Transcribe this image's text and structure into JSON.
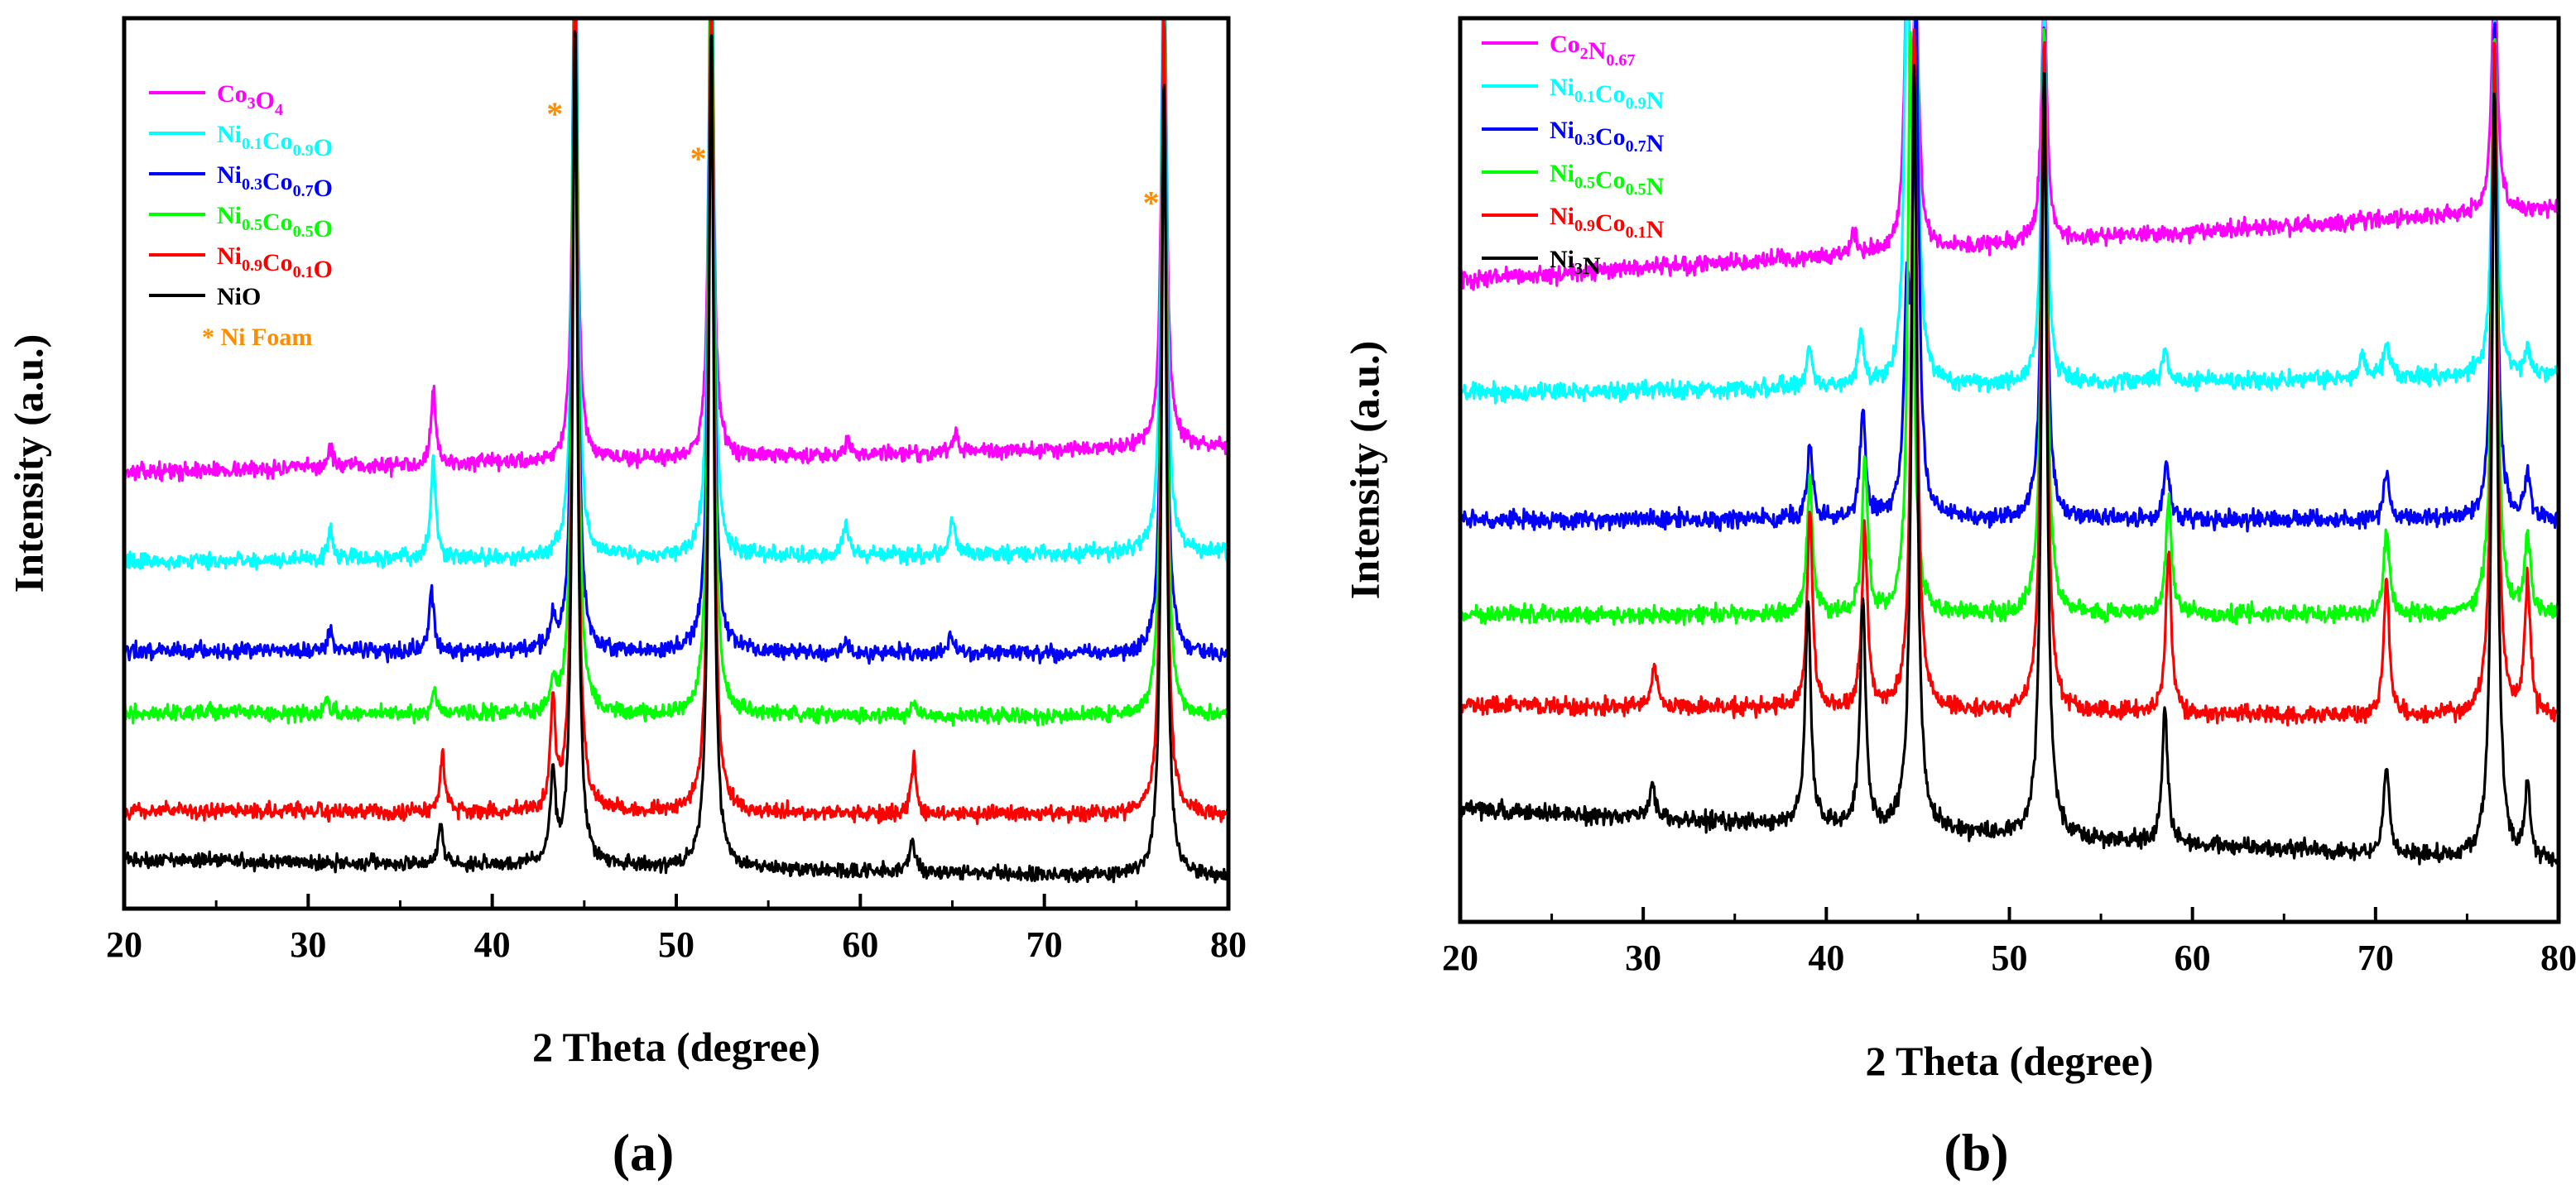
{
  "chart_data": [
    {
      "panel": "(a)",
      "type": "line",
      "title": "",
      "xlabel": "2 Theta (degree)",
      "ylabel": "Intensity (a.u.)",
      "xlim": [
        20,
        80
      ],
      "xticks": [
        20,
        30,
        40,
        50,
        60,
        70,
        80
      ],
      "ylim": [
        0,
        100
      ],
      "grid": false,
      "legend_position": "top-left",
      "legend_extra": "* Ni Foam",
      "legend_extra_color": "#ff8c00",
      "annotations": [
        {
          "text": "*",
          "x": 43.4,
          "y": 88,
          "color": "#ff8c00"
        },
        {
          "text": "*",
          "x": 51.2,
          "y": 83,
          "color": "#ff8c00"
        },
        {
          "text": "*",
          "x": 75.8,
          "y": 78,
          "color": "#ff8c00"
        }
      ],
      "peak_width": 0.16,
      "series": [
        {
          "name": "Co3O4",
          "label_parts": [
            [
              "Co",
              ""
            ],
            [
              "3",
              "sub"
            ],
            [
              "O",
              ""
            ],
            [
              "4",
              "sub"
            ]
          ],
          "color": "#ff00ff",
          "baseline_start": 49,
          "baseline_end": 52,
          "noise": 0.55,
          "peaks": [
            {
              "x": 31.2,
              "h": 2.2
            },
            {
              "x": 36.8,
              "h": 8.5
            },
            {
              "x": 44.5,
              "h": 60
            },
            {
              "x": 51.9,
              "h": 60
            },
            {
              "x": 59.3,
              "h": 1.8
            },
            {
              "x": 65.2,
              "h": 2.2
            },
            {
              "x": 76.5,
              "h": 60
            }
          ]
        },
        {
          "name": "Ni0.1Co0.9O",
          "label_parts": [
            [
              "Ni",
              ""
            ],
            [
              "0.1",
              "sub"
            ],
            [
              "Co",
              ""
            ],
            [
              "0.9",
              "sub"
            ],
            [
              "O",
              ""
            ]
          ],
          "color": "#00ffff",
          "baseline_start": 39,
          "baseline_end": 40,
          "noise": 0.55,
          "peaks": [
            {
              "x": 31.2,
              "h": 3.5
            },
            {
              "x": 36.8,
              "h": 11
            },
            {
              "x": 44.5,
              "h": 80
            },
            {
              "x": 51.9,
              "h": 80
            },
            {
              "x": 59.2,
              "h": 3.5
            },
            {
              "x": 65.0,
              "h": 4.5
            },
            {
              "x": 76.5,
              "h": 75
            }
          ]
        },
        {
          "name": "Ni0.3Co0.7O",
          "label_parts": [
            [
              "Ni",
              ""
            ],
            [
              "0.3",
              "sub"
            ],
            [
              "Co",
              ""
            ],
            [
              "0.7",
              "sub"
            ],
            [
              "O",
              ""
            ]
          ],
          "color": "#0000ff",
          "baseline_start": 29,
          "baseline_end": 28.5,
          "noise": 0.55,
          "peaks": [
            {
              "x": 31.2,
              "h": 2.5
            },
            {
              "x": 36.7,
              "h": 6.5
            },
            {
              "x": 43.3,
              "h": 3
            },
            {
              "x": 44.5,
              "h": 88
            },
            {
              "x": 51.9,
              "h": 88
            },
            {
              "x": 59.2,
              "h": 1.5
            },
            {
              "x": 64.9,
              "h": 2
            },
            {
              "x": 76.5,
              "h": 78
            }
          ]
        },
        {
          "name": "Ni0.5Co0.5O",
          "label_parts": [
            [
              "Ni",
              ""
            ],
            [
              "0.5",
              "sub"
            ],
            [
              "Co",
              ""
            ],
            [
              "0.5",
              "sub"
            ],
            [
              "O",
              ""
            ]
          ],
          "color": "#00ff00",
          "baseline_start": 22,
          "baseline_end": 21.5,
          "noise": 0.55,
          "peaks": [
            {
              "x": 31.0,
              "h": 1.5
            },
            {
              "x": 36.9,
              "h": 2.5
            },
            {
              "x": 43.3,
              "h": 3
            },
            {
              "x": 44.5,
              "h": 93
            },
            {
              "x": 51.9,
              "h": 93
            },
            {
              "x": 62.9,
              "h": 1.5
            },
            {
              "x": 76.5,
              "h": 83
            }
          ]
        },
        {
          "name": "Ni0.9Co0.1O",
          "label_parts": [
            [
              "Ni",
              ""
            ],
            [
              "0.9",
              "sub"
            ],
            [
              "Co",
              ""
            ],
            [
              "0.1",
              "sub"
            ],
            [
              "O",
              ""
            ]
          ],
          "color": "#ff0000",
          "baseline_start": 11,
          "baseline_end": 10.5,
          "noise": 0.55,
          "peaks": [
            {
              "x": 37.3,
              "h": 6.5
            },
            {
              "x": 43.3,
              "h": 12
            },
            {
              "x": 44.5,
              "h": 95
            },
            {
              "x": 51.9,
              "h": 95
            },
            {
              "x": 62.9,
              "h": 6
            },
            {
              "x": 76.5,
              "h": 90
            }
          ]
        },
        {
          "name": "NiO",
          "label_parts": [
            [
              "NiO",
              ""
            ]
          ],
          "color": "#000000",
          "baseline_start": 5.5,
          "baseline_end": 3.5,
          "noise": 0.5,
          "peaks": [
            {
              "x": 37.2,
              "h": 4.5
            },
            {
              "x": 43.3,
              "h": 10
            },
            {
              "x": 44.5,
              "h": 95
            },
            {
              "x": 51.9,
              "h": 95
            },
            {
              "x": 62.8,
              "h": 4
            },
            {
              "x": 76.5,
              "h": 90
            }
          ]
        }
      ]
    },
    {
      "panel": "(b)",
      "type": "line",
      "title": "",
      "xlabel": "2 Theta (degree)",
      "ylabel": "Intensity (a.u.)",
      "xlim": [
        20,
        80
      ],
      "xticks": [
        20,
        30,
        40,
        50,
        60,
        70,
        80
      ],
      "ylim": [
        0,
        100
      ],
      "grid": false,
      "legend_position": "top-left",
      "annotations": [],
      "peak_width": 0.18,
      "series": [
        {
          "name": "Co2N0.67",
          "label_parts": [
            [
              "Co",
              ""
            ],
            [
              "2",
              "sub"
            ],
            [
              "N",
              ""
            ],
            [
              "0.67",
              "sub"
            ]
          ],
          "color": "#ff00ff",
          "baseline_start": 71,
          "baseline_end": 79,
          "noise": 0.6,
          "peaks": [
            {
              "x": 41.5,
              "h": 2.2
            },
            {
              "x": 44.4,
              "h": 28
            },
            {
              "x": 44.9,
              "h": 28
            },
            {
              "x": 51.9,
              "h": 28
            },
            {
              "x": 76.5,
              "h": 28
            }
          ]
        },
        {
          "name": "Ni0.1Co0.9N",
          "label_parts": [
            [
              "Ni",
              ""
            ],
            [
              "0.1",
              "sub"
            ],
            [
              "Co",
              ""
            ],
            [
              "0.9",
              "sub"
            ],
            [
              "N",
              ""
            ]
          ],
          "color": "#00ffff",
          "baseline_start": 58.5,
          "baseline_end": 60.5,
          "noise": 0.6,
          "peaks": [
            {
              "x": 39.1,
              "h": 4.5
            },
            {
              "x": 41.9,
              "h": 5.5
            },
            {
              "x": 44.4,
              "h": 42
            },
            {
              "x": 44.9,
              "h": 42
            },
            {
              "x": 51.9,
              "h": 42
            },
            {
              "x": 58.5,
              "h": 3.5
            },
            {
              "x": 69.3,
              "h": 2.5
            },
            {
              "x": 70.6,
              "h": 4
            },
            {
              "x": 76.5,
              "h": 40
            },
            {
              "x": 78.3,
              "h": 3
            }
          ]
        },
        {
          "name": "Ni0.3Co0.7N",
          "label_parts": [
            [
              "Ni",
              ""
            ],
            [
              "0.3",
              "sub"
            ],
            [
              "Co",
              ""
            ],
            [
              "0.7",
              "sub"
            ],
            [
              "N",
              ""
            ]
          ],
          "color": "#0000ff",
          "baseline_start": 44.5,
          "baseline_end": 44.5,
          "noise": 0.6,
          "peaks": [
            {
              "x": 39.1,
              "h": 8
            },
            {
              "x": 42.0,
              "h": 12
            },
            {
              "x": 44.4,
              "h": 22
            },
            {
              "x": 44.9,
              "h": 55
            },
            {
              "x": 51.9,
              "h": 55
            },
            {
              "x": 58.6,
              "h": 6.5
            },
            {
              "x": 70.6,
              "h": 5
            },
            {
              "x": 76.5,
              "h": 55
            },
            {
              "x": 78.3,
              "h": 5
            }
          ]
        },
        {
          "name": "Ni0.5Co0.5N",
          "label_parts": [
            [
              "Ni",
              ""
            ],
            [
              "0.5",
              "sub"
            ],
            [
              "Co",
              ""
            ],
            [
              "0.5",
              "sub"
            ],
            [
              "N",
              ""
            ]
          ],
          "color": "#00ff00",
          "baseline_start": 34,
          "baseline_end": 34,
          "noise": 0.6,
          "peaks": [
            {
              "x": 39.1,
              "h": 15
            },
            {
              "x": 42.1,
              "h": 17
            },
            {
              "x": 44.6,
              "h": 65
            },
            {
              "x": 51.9,
              "h": 65
            },
            {
              "x": 58.7,
              "h": 13
            },
            {
              "x": 70.6,
              "h": 9
            },
            {
              "x": 76.5,
              "h": 65
            },
            {
              "x": 78.3,
              "h": 9
            }
          ]
        },
        {
          "name": "Ni0.9Co0.1N",
          "label_parts": [
            [
              "Ni",
              ""
            ],
            [
              "0.9",
              "sub"
            ],
            [
              "Co",
              ""
            ],
            [
              "0.1",
              "sub"
            ],
            [
              "N",
              ""
            ]
          ],
          "color": "#ff0000",
          "baseline_start": 24,
          "baseline_end": 22.5,
          "noise": 0.6,
          "peaks": [
            {
              "x": 30.6,
              "h": 4.5
            },
            {
              "x": 39.1,
              "h": 22
            },
            {
              "x": 42.1,
              "h": 20
            },
            {
              "x": 44.8,
              "h": 75
            },
            {
              "x": 51.9,
              "h": 75
            },
            {
              "x": 58.7,
              "h": 18
            },
            {
              "x": 70.6,
              "h": 15
            },
            {
              "x": 76.5,
              "h": 75
            },
            {
              "x": 78.3,
              "h": 15
            }
          ]
        },
        {
          "name": "Ni3N",
          "label_parts": [
            [
              "Ni",
              ""
            ],
            [
              "3",
              "sub"
            ],
            [
              "N",
              ""
            ]
          ],
          "color": "#000000",
          "baseline_start": 12.5,
          "baseline_end": 6.5,
          "noise": 0.6,
          "peaks": [
            {
              "x": 30.5,
              "h": 4
            },
            {
              "x": 39.0,
              "h": 25
            },
            {
              "x": 42.0,
              "h": 25
            },
            {
              "x": 44.8,
              "h": 85
            },
            {
              "x": 51.9,
              "h": 85
            },
            {
              "x": 58.5,
              "h": 15
            },
            {
              "x": 70.6,
              "h": 10
            },
            {
              "x": 76.5,
              "h": 85
            },
            {
              "x": 78.3,
              "h": 8
            }
          ]
        }
      ]
    }
  ]
}
